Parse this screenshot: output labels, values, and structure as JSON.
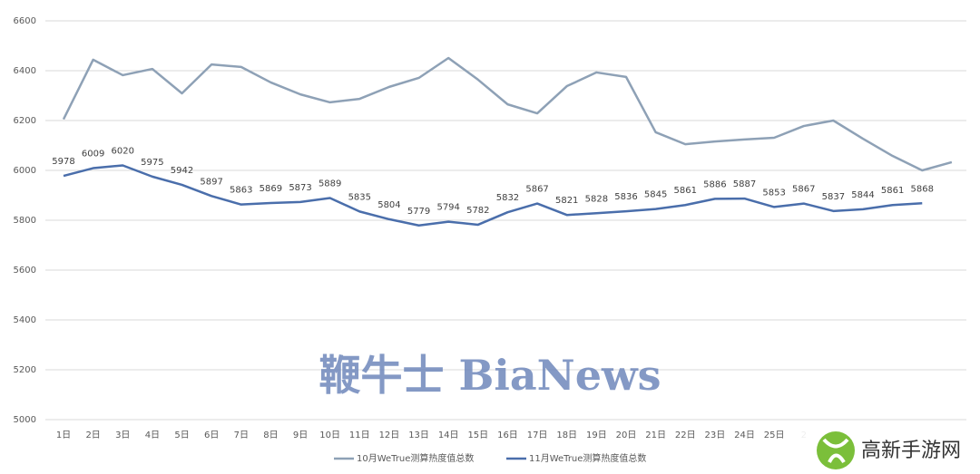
{
  "chart_data": {
    "type": "line",
    "categories": [
      "1日",
      "2日",
      "3日",
      "4日",
      "5日",
      "6日",
      "7日",
      "8日",
      "9日",
      "10日",
      "11日",
      "12日",
      "13日",
      "14日",
      "15日",
      "16日",
      "17日",
      "18日",
      "19日",
      "20日",
      "21日",
      "22日",
      "23日",
      "24日",
      "25日",
      "2",
      null,
      null,
      null,
      null,
      null
    ],
    "series": [
      {
        "name": "10月WeTrue测算热度值总数",
        "color": "#8ea1b6",
        "values": [
          6205,
          6444,
          6382,
          6407,
          6309,
          6425,
          6415,
          6353,
          6305,
          6273,
          6287,
          6335,
          6371,
          6451,
          6364,
          6265,
          6229,
          6338,
          6393,
          6375,
          6153,
          6105,
          6116,
          6124,
          6131,
          6178,
          6200,
          6127,
          6058,
          6000,
          6033
        ]
      },
      {
        "name": "11月WeTrue测算热度值总数",
        "color": "#4a6eab",
        "data_labels": true,
        "values": [
          5978,
          6009,
          6020,
          5975,
          5942,
          5897,
          5863,
          5869,
          5873,
          5889,
          5835,
          5804,
          5779,
          5794,
          5782,
          5832,
          5867,
          5821,
          5828,
          5836,
          5845,
          5861,
          5886,
          5887,
          5853,
          5867,
          5837,
          5844,
          5861,
          5868,
          null
        ]
      }
    ],
    "ylim": [
      5000,
      6600
    ],
    "yticks": [
      5000,
      5200,
      5400,
      5600,
      5800,
      6000,
      6200,
      6400,
      6600
    ],
    "grid": true,
    "legend": "bottom"
  },
  "watermark": "鞭牛士 BiaNews",
  "logo_text": "高新手游网"
}
